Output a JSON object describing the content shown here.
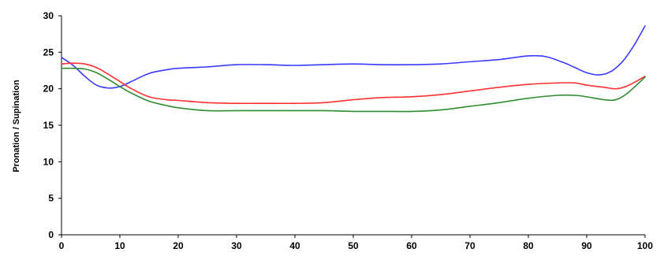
{
  "chart_data": {
    "type": "line",
    "title": "",
    "xlabel": "",
    "ylabel": "Pronation / Supination",
    "xlim": [
      0,
      100
    ],
    "ylim": [
      0,
      30
    ],
    "x_ticks": [
      0,
      10,
      20,
      30,
      40,
      50,
      60,
      70,
      80,
      90,
      100
    ],
    "y_ticks": [
      0,
      5,
      10,
      15,
      20,
      25,
      30
    ],
    "grid": false,
    "legend": "none",
    "series": [
      {
        "color": "#3a3aff",
        "x": [
          0,
          2,
          4,
          6,
          8,
          10,
          12,
          15,
          18,
          20,
          25,
          30,
          35,
          40,
          45,
          50,
          55,
          60,
          65,
          70,
          75,
          80,
          83,
          86,
          88,
          90,
          92,
          94,
          96,
          98,
          100
        ],
        "y": [
          24.3,
          23.2,
          21.7,
          20.5,
          20.1,
          20.3,
          21.0,
          22.1,
          22.6,
          22.8,
          23.0,
          23.3,
          23.3,
          23.2,
          23.3,
          23.4,
          23.3,
          23.3,
          23.4,
          23.7,
          24.0,
          24.5,
          24.4,
          23.6,
          22.9,
          22.2,
          21.9,
          22.3,
          23.6,
          25.8,
          28.6
        ]
      },
      {
        "color": "#ff3030",
        "x": [
          0,
          2,
          4,
          6,
          8,
          10,
          12,
          15,
          18,
          20,
          25,
          30,
          35,
          40,
          45,
          50,
          55,
          60,
          65,
          70,
          75,
          80,
          85,
          88,
          90,
          93,
          95,
          97,
          100
        ],
        "y": [
          23.4,
          23.5,
          23.4,
          22.9,
          22.0,
          21.0,
          20.0,
          18.9,
          18.5,
          18.4,
          18.1,
          18.0,
          18.0,
          18.0,
          18.1,
          18.5,
          18.8,
          18.9,
          19.2,
          19.7,
          20.2,
          20.6,
          20.8,
          20.8,
          20.5,
          20.2,
          20.0,
          20.4,
          21.7
        ]
      },
      {
        "color": "#2e8b2e",
        "x": [
          0,
          2,
          4,
          6,
          8,
          10,
          12,
          15,
          18,
          20,
          25,
          30,
          35,
          40,
          45,
          50,
          55,
          60,
          65,
          70,
          75,
          80,
          85,
          88,
          90,
          93,
          95,
          97,
          100
        ],
        "y": [
          22.8,
          22.8,
          22.7,
          22.2,
          21.3,
          20.3,
          19.4,
          18.3,
          17.7,
          17.4,
          17.0,
          17.0,
          17.0,
          17.0,
          17.0,
          16.9,
          16.9,
          16.9,
          17.1,
          17.6,
          18.1,
          18.7,
          19.1,
          19.1,
          18.9,
          18.5,
          18.5,
          19.4,
          21.6
        ]
      }
    ]
  }
}
